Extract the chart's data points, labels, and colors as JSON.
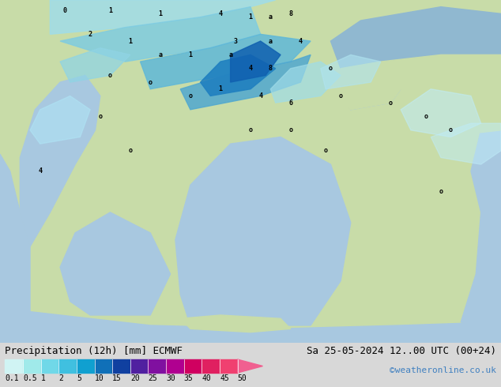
{
  "title_left": "Precipitation (12h) [mm] ECMWF",
  "title_right": "Sa 25-05-2024 12..00 UTC (00+24)",
  "credit": "©weatheronline.co.uk",
  "colorbar_values": [
    "0.1",
    "0.5",
    "1",
    "2",
    "5",
    "10",
    "15",
    "20",
    "25",
    "30",
    "35",
    "40",
    "45",
    "50"
  ],
  "colorbar_colors": [
    "#d0f4f4",
    "#a0eaea",
    "#70d8e8",
    "#40c0e0",
    "#10a0d0",
    "#1070b8",
    "#1040a0",
    "#5020a0",
    "#8010a0",
    "#b00090",
    "#d00060",
    "#e02060",
    "#f04070",
    "#f06090"
  ],
  "land_color": "#c8dca8",
  "sea_color": "#a8c8e0",
  "bottom_bar_color": "#d8d8d8",
  "text_color": "#000000",
  "credit_color": "#4080c0",
  "font_size_title": 9,
  "font_size_credit": 8,
  "font_size_tick": 7,
  "fig_width": 6.34,
  "fig_height": 4.9
}
